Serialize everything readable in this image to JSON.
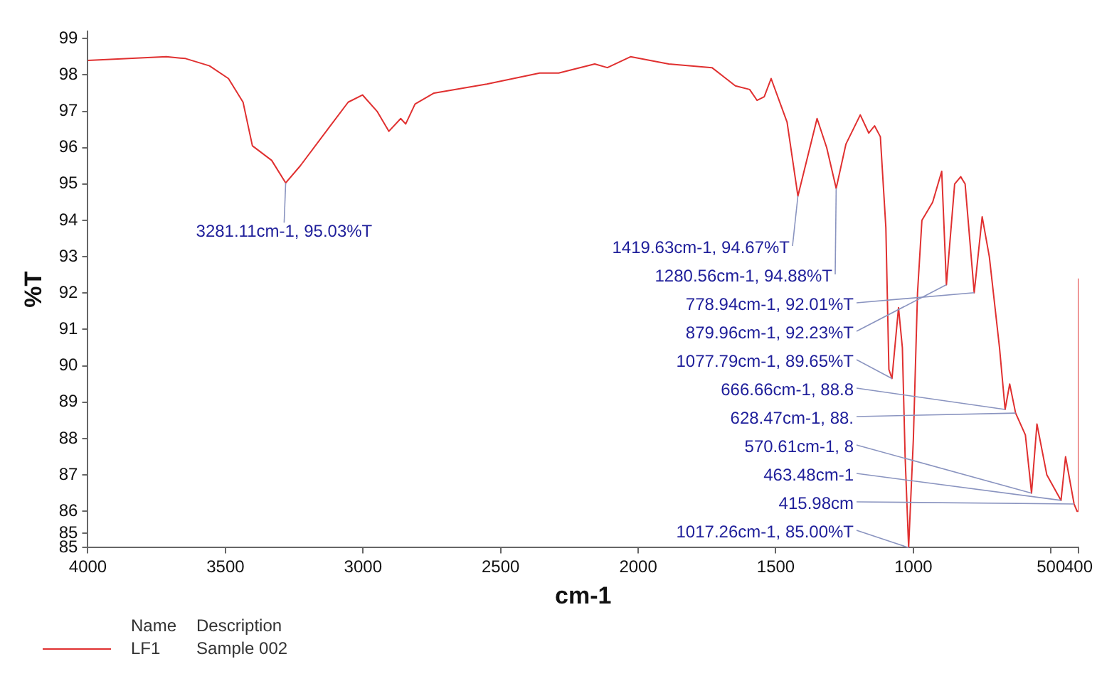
{
  "chart_data": {
    "type": "line",
    "xlabel": "cm-1",
    "ylabel": "%T",
    "xlim": [
      4000,
      400
    ],
    "xticks": [
      4000,
      3500,
      3000,
      2500,
      2000,
      1500,
      1000,
      500,
      400
    ],
    "ylim": [
      85,
      99.2
    ],
    "yticks": [
      85,
      {
        "value": 85.4,
        "label": "85"
      },
      86,
      87,
      88,
      89,
      90,
      91,
      92,
      93,
      94,
      95,
      96,
      97,
      98,
      99
    ],
    "grid": false,
    "legend": "bottom left",
    "marker": "none",
    "line_style": "solid",
    "series": [
      {
        "name": "LF1",
        "color": "#e03030",
        "x": [
          4000,
          3715,
          3645,
          3558,
          3489,
          3436,
          3402,
          3367,
          3332,
          3281.11,
          3228,
          3124,
          3054,
          3002,
          2949,
          2906,
          2863,
          2845,
          2811,
          2742,
          2550,
          2358,
          2289,
          2158,
          2112,
          2028,
          1889,
          1732,
          1647,
          1595,
          1568,
          1542,
          1517,
          1459,
          1419.63,
          1350,
          1315,
          1280.56,
          1245,
          1193,
          1162,
          1141,
          1120,
          1100,
          1089,
          1077.79,
          1054,
          1040,
          1030,
          1017.26,
          1000,
          985,
          969,
          930,
          897,
          879.96,
          850,
          828,
          812,
          778.94,
          750,
          724,
          687,
          666.66,
          650,
          628.47,
          593,
          570.61,
          551,
          515,
          463.48,
          447,
          415.98,
          405,
          400
        ],
        "values": [
          98.4,
          98.5,
          98.45,
          98.25,
          97.9,
          97.25,
          96.05,
          95.85,
          95.65,
          95.03,
          95.5,
          96.55,
          97.25,
          97.45,
          97.0,
          96.45,
          96.8,
          96.65,
          97.2,
          97.5,
          97.75,
          98.05,
          98.05,
          98.3,
          98.2,
          98.5,
          98.3,
          98.2,
          97.7,
          97.6,
          97.3,
          97.4,
          97.9,
          96.7,
          94.67,
          96.8,
          96.0,
          94.88,
          96.1,
          96.9,
          96.4,
          96.6,
          96.3,
          93.8,
          89.9,
          89.65,
          91.6,
          90.5,
          87.5,
          85.0,
          88.0,
          92.0,
          94.0,
          94.5,
          95.35,
          92.23,
          95.0,
          95.2,
          95.0,
          92.01,
          94.1,
          93.0,
          90.5,
          88.8,
          89.5,
          88.7,
          88.1,
          86.5,
          88.4,
          87.0,
          86.3,
          87.5,
          86.2,
          86.0,
          92.4
        ]
      }
    ],
    "annotations": [
      {
        "text": "3281.11cm-1, 95.03%T",
        "x": 3281.11,
        "y": 95.03
      },
      {
        "text": "1419.63cm-1, 94.67%T",
        "x": 1419.63,
        "y": 94.67
      },
      {
        "text": "1280.56cm-1, 94.88%T",
        "x": 1280.56,
        "y": 94.88
      },
      {
        "text": "778.94cm-1, 92.01%T",
        "x": 778.94,
        "y": 92.01
      },
      {
        "text": "666.66cm-1, 88.8",
        "x": 666.66,
        "y": 88.8
      },
      {
        "text": "628.47cm-1, 88.",
        "x": 628.47,
        "y": 88.7
      },
      {
        "text": "1077.79cm-1, 89.65%T",
        "x": 1077.79,
        "y": 89.65
      },
      {
        "text": "879.96cm-1, 92.23%T",
        "x": 879.96,
        "y": 92.23
      },
      {
        "text": "415.98cm",
        "x": 415.98,
        "y": 86.2
      },
      {
        "text": "463.48cm-1",
        "x": 463.48,
        "y": 86.3
      },
      {
        "text": "1017.26cm-1, 85.00%T",
        "x": 1017.26,
        "y": 85.0
      },
      {
        "text": "570.61cm-1, 8",
        "x": 570.61,
        "y": 86.5
      },
      "Name",
      "Description",
      "Sample 002"
    ]
  }
}
